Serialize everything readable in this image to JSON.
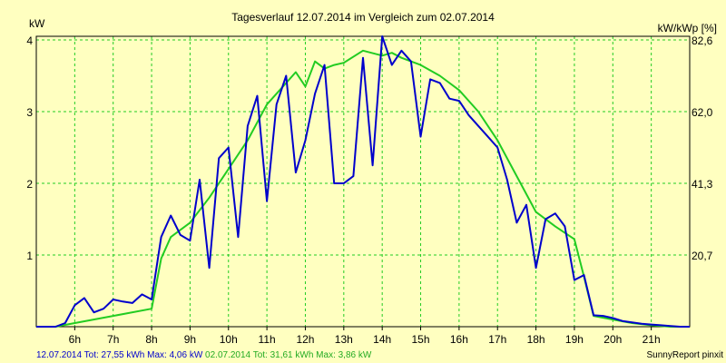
{
  "chart_data": {
    "type": "line",
    "title": "Tagesverlauf 12.07.2014 im Vergleich zum 02.07.2014",
    "ylabel_left": "kW",
    "ylabel_right": "kW/kWp [%]",
    "x_range_hours": [
      5.0,
      22.0
    ],
    "ylim": [
      0,
      4.05
    ],
    "x_ticks": [
      {
        "h": 6,
        "label": "6h"
      },
      {
        "h": 7,
        "label": "7h"
      },
      {
        "h": 8,
        "label": "8h"
      },
      {
        "h": 9,
        "label": "9h"
      },
      {
        "h": 10,
        "label": "10h"
      },
      {
        "h": 11,
        "label": "11h"
      },
      {
        "h": 12,
        "label": "12h"
      },
      {
        "h": 13,
        "label": "13h"
      },
      {
        "h": 14,
        "label": "14h"
      },
      {
        "h": 15,
        "label": "15h"
      },
      {
        "h": 16,
        "label": "16h"
      },
      {
        "h": 17,
        "label": "17h"
      },
      {
        "h": 18,
        "label": "18h"
      },
      {
        "h": 19,
        "label": "19h"
      },
      {
        "h": 20,
        "label": "20h"
      },
      {
        "h": 21,
        "label": "21h"
      }
    ],
    "y_ticks_left": [
      {
        "v": 1,
        "label": "1"
      },
      {
        "v": 2,
        "label": "2"
      },
      {
        "v": 3,
        "label": "3"
      },
      {
        "v": 4,
        "label": "4"
      }
    ],
    "y_ticks_right": [
      {
        "v": 1,
        "label": "20,7"
      },
      {
        "v": 2,
        "label": "41,3"
      },
      {
        "v": 3,
        "label": "62,0"
      },
      {
        "v": 4,
        "label": "82,6"
      }
    ],
    "grid": true,
    "series": [
      {
        "name": "12.07.2014",
        "color": "#0000cc",
        "x": [
          5.0,
          5.5,
          5.75,
          6.0,
          6.25,
          6.5,
          6.75,
          7.0,
          7.25,
          7.5,
          7.75,
          8.0,
          8.25,
          8.5,
          8.75,
          9.0,
          9.25,
          9.5,
          9.75,
          10.0,
          10.25,
          10.5,
          10.75,
          11.0,
          11.25,
          11.5,
          11.75,
          12.0,
          12.25,
          12.5,
          12.75,
          13.0,
          13.25,
          13.5,
          13.75,
          14.0,
          14.25,
          14.5,
          14.75,
          15.0,
          15.25,
          15.5,
          15.75,
          16.0,
          16.25,
          16.5,
          16.75,
          17.0,
          17.25,
          17.5,
          17.75,
          18.0,
          18.25,
          18.5,
          18.75,
          19.0,
          19.25,
          19.5,
          19.75,
          20.0,
          20.25,
          20.5,
          20.75,
          21.0,
          21.25,
          21.5,
          21.75,
          22.0
        ],
        "values": [
          0.0,
          0.0,
          0.05,
          0.3,
          0.4,
          0.2,
          0.25,
          0.38,
          0.35,
          0.33,
          0.45,
          0.38,
          1.25,
          1.55,
          1.28,
          1.2,
          2.05,
          0.82,
          2.35,
          2.5,
          1.25,
          2.8,
          3.22,
          1.75,
          3.1,
          3.5,
          2.15,
          2.6,
          3.25,
          3.65,
          2.0,
          2.0,
          2.1,
          3.75,
          2.25,
          4.05,
          3.65,
          3.85,
          3.7,
          2.65,
          3.45,
          3.4,
          3.18,
          3.15,
          2.95,
          2.8,
          2.65,
          2.5,
          2.05,
          1.45,
          1.7,
          0.82,
          1.5,
          1.58,
          1.4,
          0.65,
          0.72,
          0.16,
          0.15,
          0.12,
          0.08,
          0.06,
          0.04,
          0.03,
          0.02,
          0.01,
          0.0,
          0.0
        ]
      },
      {
        "name": "02.07.2014",
        "color": "#22cc22",
        "x": [
          5.0,
          5.5,
          6.0,
          7.0,
          8.0,
          8.25,
          8.5,
          9.0,
          9.5,
          10.0,
          10.5,
          11.0,
          11.5,
          11.75,
          12.0,
          12.25,
          12.5,
          12.75,
          13.0,
          13.5,
          14.0,
          14.25,
          14.5,
          15.0,
          15.5,
          16.0,
          16.5,
          17.0,
          17.5,
          18.0,
          18.5,
          19.0,
          19.25,
          19.5,
          20.0,
          20.5,
          21.0,
          21.5,
          22.0
        ],
        "values": [
          0.0,
          0.0,
          0.05,
          0.15,
          0.25,
          0.95,
          1.25,
          1.45,
          1.8,
          2.2,
          2.6,
          3.1,
          3.4,
          3.55,
          3.35,
          3.7,
          3.6,
          3.65,
          3.68,
          3.85,
          3.78,
          3.82,
          3.75,
          3.65,
          3.5,
          3.3,
          3.0,
          2.6,
          2.1,
          1.6,
          1.4,
          1.22,
          0.7,
          0.15,
          0.1,
          0.05,
          0.02,
          0.0,
          0.0
        ]
      }
    ]
  },
  "footer": {
    "blue_text": "12.07.2014 Tot: 27,55 kWh Max: 4,06 kW",
    "green_text": "02.07.2014 Tot: 31,61 kWh Max: 3,86 kW",
    "credit": "SunnyReport pinxit"
  }
}
